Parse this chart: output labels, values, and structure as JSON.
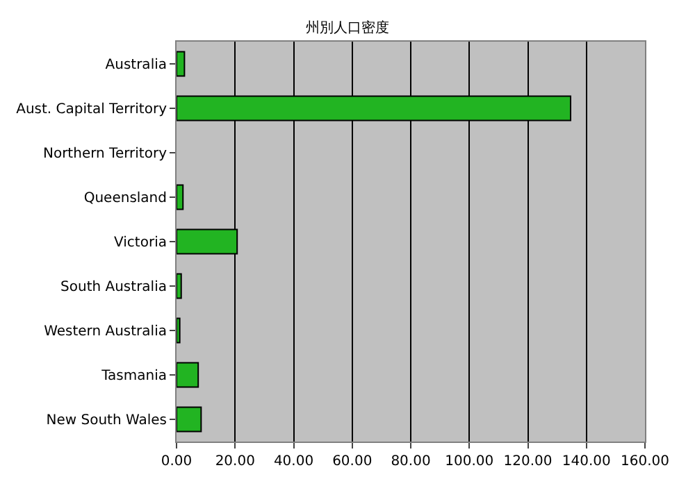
{
  "chart_data": {
    "type": "bar",
    "orientation": "horizontal",
    "title": "州別人口密度",
    "categories": [
      "Australia",
      "Aust. Capital Territory",
      "Northern Territory",
      "Queensland",
      "Victoria",
      "South Australia",
      "Western Australia",
      "Tasmania",
      "New South Wales"
    ],
    "values": [
      2.7,
      134.6,
      null,
      2.2,
      20.7,
      1.6,
      1.1,
      7.4,
      8.4
    ],
    "color": "#22b422",
    "xlim": [
      0,
      160
    ],
    "xticks": [
      {
        "value": 0,
        "label": "0.00"
      },
      {
        "value": 20,
        "label": "20.00"
      },
      {
        "value": 40,
        "label": "40.00"
      },
      {
        "value": 60,
        "label": "60.00"
      },
      {
        "value": 80,
        "label": "80.00"
      },
      {
        "value": 100,
        "label": "100.00"
      },
      {
        "value": 120,
        "label": "120.00"
      },
      {
        "value": 140,
        "label": "140.00"
      },
      {
        "value": 160,
        "label": "160.00"
      }
    ],
    "grid": "x"
  }
}
